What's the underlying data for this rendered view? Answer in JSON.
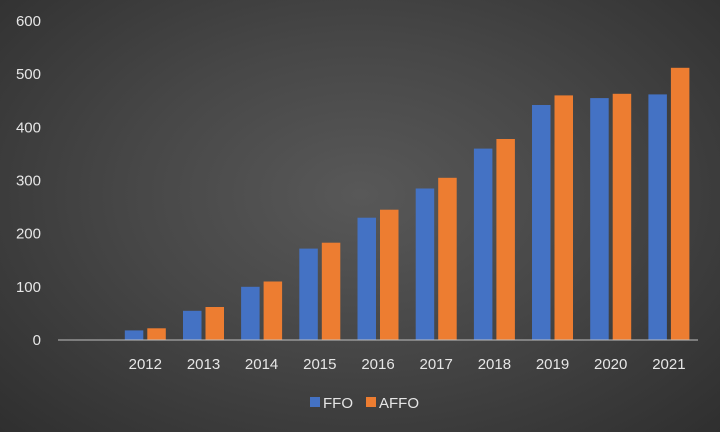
{
  "chart_data": {
    "type": "bar",
    "categories": [
      "",
      "2012",
      "2013",
      "2014",
      "2015",
      "2016",
      "2017",
      "2018",
      "2019",
      "2020",
      "2021"
    ],
    "series": [
      {
        "name": "FFO",
        "color": "#4472c4",
        "values": [
          null,
          18,
          55,
          100,
          172,
          230,
          285,
          360,
          442,
          455,
          462
        ]
      },
      {
        "name": "AFFO",
        "color": "#ed7d31",
        "values": [
          null,
          22,
          62,
          110,
          183,
          245,
          305,
          378,
          460,
          463,
          512
        ]
      }
    ],
    "yticks": [
      0,
      100,
      200,
      300,
      400,
      500,
      600
    ],
    "ylim": [
      0,
      600
    ],
    "title": "",
    "xlabel": "",
    "ylabel": "",
    "legend": "bottom-center",
    "grid": false
  }
}
